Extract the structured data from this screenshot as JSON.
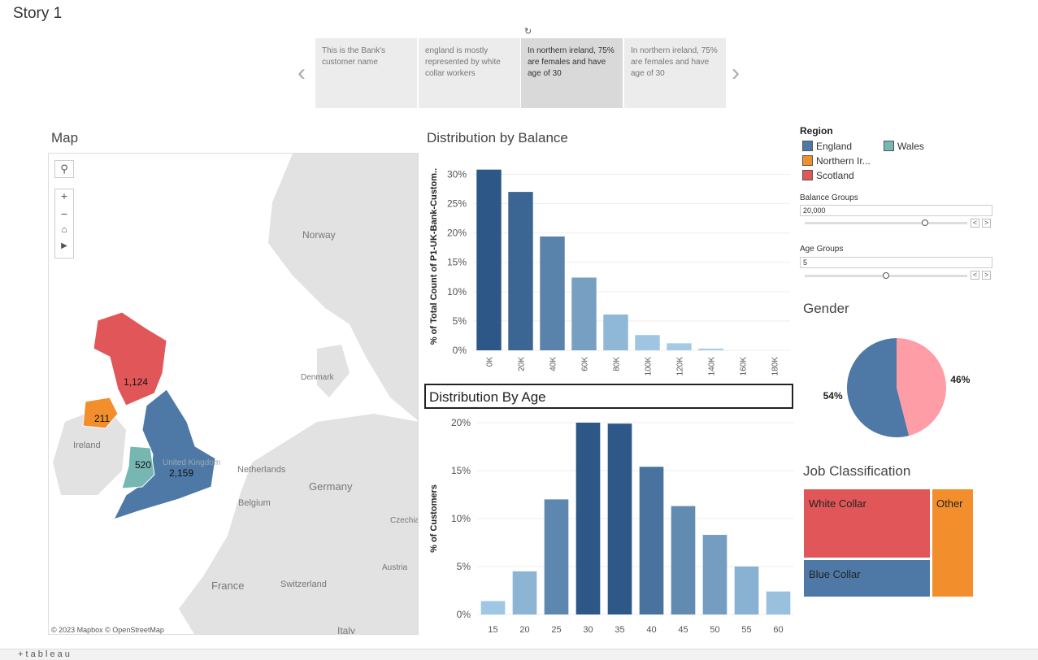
{
  "story": {
    "title": "Story 1",
    "points": [
      {
        "text": "This is the Bank's customer name",
        "active": false
      },
      {
        "text": "england is mostly represented by white collar workers",
        "active": false
      },
      {
        "text": "In northern ireland, 75% are females and have age of 30",
        "active": true
      },
      {
        "text": "In northern ireland, 75% are females and have age of 30",
        "active": false
      }
    ],
    "prev_icon": "chevron-left-icon",
    "next_icon": "chevron-right-icon",
    "refresh_icon": "refresh-icon"
  },
  "map": {
    "title": "Map",
    "controls": [
      "search-icon",
      "zoom-in-icon",
      "zoom-out-icon",
      "home-icon",
      "play-icon"
    ],
    "places": [
      "Norway",
      "Denmark",
      "Ireland",
      "United Kingdom",
      "Netherlands",
      "Germany",
      "Belgium",
      "Czechia",
      "Austria",
      "France",
      "Switzerland",
      "Italy"
    ],
    "regions": [
      {
        "name": "Scotland",
        "value": "1,124"
      },
      {
        "name": "Northern Ireland",
        "value": "211"
      },
      {
        "name": "Wales",
        "value": "520"
      },
      {
        "name": "England",
        "value": "2,159"
      }
    ],
    "attribution": "© 2023 Mapbox  © OpenStreetMap"
  },
  "colors": {
    "england": "#4e79a7",
    "northern_ireland": "#f28e2b",
    "scotland": "#e15759",
    "wales": "#76b7b2",
    "gender_female": "#ff9da7",
    "gender_male": "#4e79a7"
  },
  "legend": {
    "title": "Region",
    "items": [
      {
        "label": "England",
        "color": "#4e79a7"
      },
      {
        "label": "Wales",
        "color": "#76b7b2"
      },
      {
        "label": "Northern Ir...",
        "color": "#f28e2b"
      },
      {
        "label": "Scotland",
        "color": "#e15759"
      }
    ]
  },
  "params": {
    "balance": {
      "label": "Balance Groups",
      "value": "20,000",
      "position": 0.74
    },
    "age": {
      "label": "Age Groups",
      "value": "5",
      "position": 0.5
    },
    "dec_label": "<",
    "inc_label": ">"
  },
  "balance_chart": {
    "title": "Distribution by Balance",
    "ylabel": "% of Total Count of P1-UK-Bank-Custom..",
    "chart_data": {
      "type": "bar",
      "categories": [
        "0K",
        "20K",
        "40K",
        "60K",
        "80K",
        "100K",
        "120K",
        "140K",
        "160K",
        "180K"
      ],
      "values": [
        30.8,
        27.0,
        19.4,
        12.4,
        6.1,
        2.6,
        1.2,
        0.3,
        0,
        0
      ],
      "ylim": [
        0,
        32
      ],
      "yticks": [
        0,
        5,
        10,
        15,
        20,
        25,
        30
      ],
      "ytick_labels": [
        "0%",
        "5%",
        "10%",
        "15%",
        "20%",
        "25%",
        "30%"
      ]
    }
  },
  "age_chart": {
    "title": "Distribution By Age",
    "ylabel": "% of Customers",
    "chart_data": {
      "type": "bar",
      "categories": [
        "15",
        "20",
        "25",
        "30",
        "35",
        "40",
        "45",
        "50",
        "55",
        "60"
      ],
      "values": [
        1.4,
        4.5,
        12.0,
        20.0,
        19.9,
        15.4,
        11.3,
        8.3,
        5.0,
        2.4
      ],
      "ylim": [
        0,
        20
      ],
      "yticks": [
        0,
        5,
        10,
        15,
        20
      ],
      "ytick_labels": [
        "0%",
        "5%",
        "10%",
        "15%",
        "20%"
      ]
    }
  },
  "gender_chart": {
    "title": "Gender",
    "chart_data": {
      "type": "pie",
      "slices": [
        {
          "label": "46%",
          "value": 46,
          "color": "#ff9da7"
        },
        {
          "label": "54%",
          "value": 54,
          "color": "#4e79a7"
        }
      ]
    }
  },
  "job_chart": {
    "title": "Job Classification",
    "chart_data": {
      "type": "treemap",
      "items": [
        {
          "label": "White Collar",
          "color": "#e15759"
        },
        {
          "label": "Blue Collar",
          "color": "#4e79a7"
        },
        {
          "label": "Other",
          "color": "#f28e2b"
        }
      ]
    }
  },
  "footer": {
    "brand": "+ t a b l e a u"
  }
}
